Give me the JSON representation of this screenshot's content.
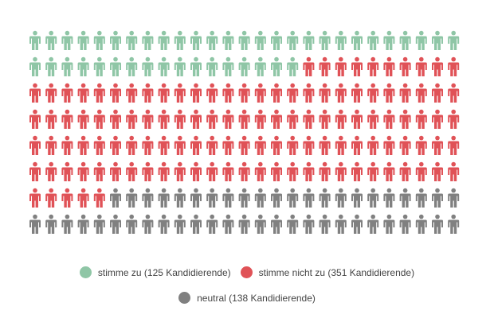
{
  "chart_data": {
    "type": "pictogram",
    "layout": {
      "rows": 8,
      "columns": 27
    },
    "icon": "person-icon",
    "legend_position": "bottom",
    "series": [
      {
        "name": "stimme zu",
        "value": 125,
        "label": "stimme zu (125 Kandidierende)",
        "color": "#8fc6a6"
      },
      {
        "name": "stimme nicht zu",
        "value": 351,
        "label": "stimme nicht zu (351 Kandidierende)",
        "color": "#e05257"
      },
      {
        "name": "neutral",
        "value": 138,
        "label": "neutral (138 Kandidierende)",
        "color": "#808080"
      }
    ]
  }
}
